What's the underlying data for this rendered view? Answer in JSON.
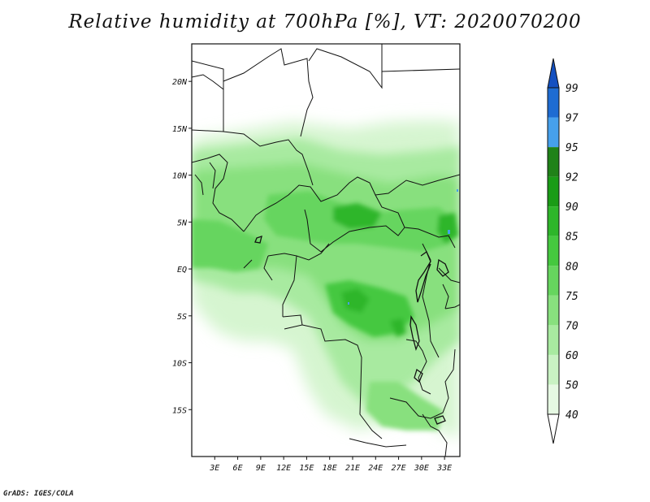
{
  "title": "Relative humidity at 700hPa [%], VT: 2020070200",
  "credit": "GrADS: IGES/COLA",
  "map": {
    "lon_range": [
      0,
      35
    ],
    "lat_range": [
      -20,
      24
    ],
    "x_ticks": [
      "3E",
      "6E",
      "9E",
      "12E",
      "15E",
      "18E",
      "21E",
      "24E",
      "27E",
      "30E",
      "33E"
    ],
    "y_ticks": [
      "20N",
      "15N",
      "10N",
      "5N",
      "EQ",
      "5S",
      "10S",
      "15S"
    ]
  },
  "colorbar": {
    "labels": [
      "40",
      "50",
      "60",
      "70",
      "75",
      "80",
      "85",
      "90",
      "92",
      "95",
      "97",
      "99"
    ],
    "colors": [
      "#ffffff",
      "#e6f9e3",
      "#c9f2c3",
      "#a8eaa0",
      "#88e07e",
      "#66d55e",
      "#45c83f",
      "#2eb62a",
      "#1a9c16",
      "#208218",
      "#46a0ec",
      "#1e6cd2",
      "#1450c0"
    ]
  }
}
